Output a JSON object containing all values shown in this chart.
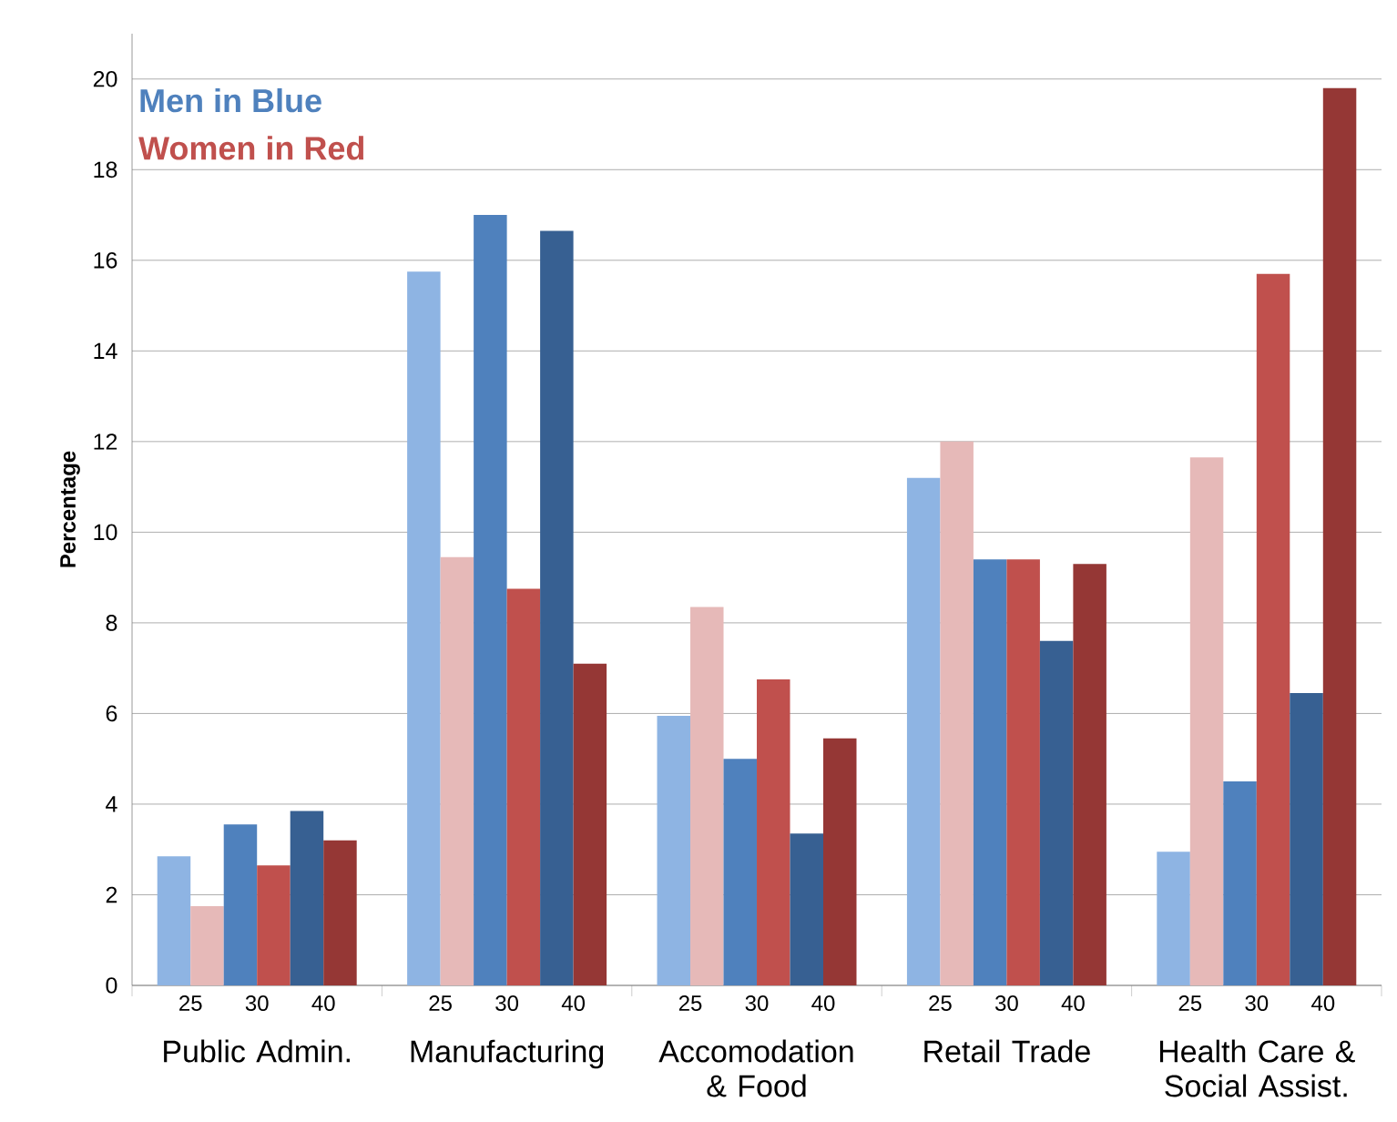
{
  "chart_data": {
    "type": "bar",
    "ylabel": "Percentage",
    "categories": [
      "Public Admin.",
      "Manufacturing",
      "Accomodation & Food",
      "Retail Trade",
      "Health Care & Social Assist."
    ],
    "series": [
      {
        "name": "25",
        "color": "#8eb4e3",
        "values": [
          2.85,
          15.75,
          5.95,
          11.2,
          2.95
        ]
      },
      {
        "color": "#e6b9b8",
        "values": [
          1.75,
          9.45,
          8.35,
          12.0,
          11.65
        ]
      },
      {
        "name": "30",
        "color": "#4f81bd",
        "values": [
          3.55,
          17.0,
          5.0,
          9.4,
          4.5
        ]
      },
      {
        "color": "#c0504d",
        "values": [
          2.65,
          8.75,
          6.75,
          9.4,
          15.7
        ]
      },
      {
        "name": "40",
        "color": "#376092",
        "values": [
          3.85,
          16.65,
          3.35,
          7.6,
          6.45
        ]
      },
      {
        "color": "#953735",
        "values": [
          3.2,
          7.1,
          5.45,
          9.3,
          19.8
        ]
      }
    ],
    "annotations": [
      "Men in Blue",
      "Women in Red"
    ],
    "ylim": [
      0,
      21
    ],
    "yticks": [
      0,
      2,
      4,
      6,
      8,
      10,
      12,
      14,
      16,
      18,
      20
    ],
    "grid": "y"
  }
}
